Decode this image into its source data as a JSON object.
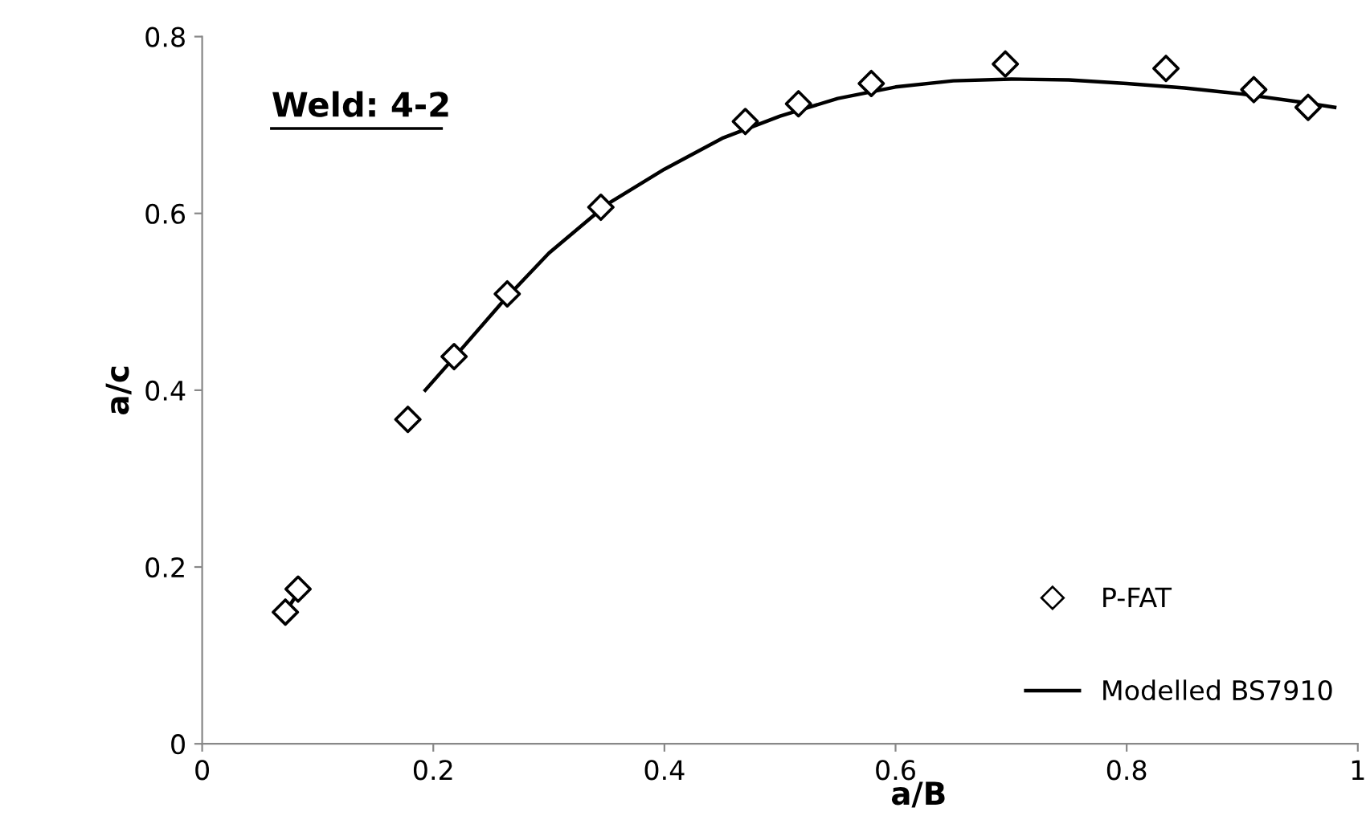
{
  "chart_data": {
    "type": "scatter",
    "xlabel": "a/B",
    "ylabel": "a/c",
    "annotations": [
      "Weld: 4-2"
    ],
    "series": [
      {
        "name": "P-FAT",
        "color": "#000000",
        "marker": "diamond",
        "x": [
          0.072,
          0.083,
          0.178,
          0.218,
          0.264,
          0.345,
          0.47,
          0.516,
          0.579,
          0.695,
          0.834,
          0.91,
          0.957
        ],
        "values": [
          0.149,
          0.175,
          0.367,
          0.438,
          0.509,
          0.607,
          0.704,
          0.724,
          0.747,
          0.769,
          0.764,
          0.74,
          0.72
        ]
      },
      {
        "name": "Modelled BS7910",
        "type": "line",
        "color": "#000000",
        "line_style": "solid",
        "x": [
          0.075,
          0.085,
          0.13,
          0.193,
          0.22,
          0.26,
          0.3,
          0.35,
          0.4,
          0.45,
          0.5,
          0.55,
          0.6,
          0.65,
          0.7,
          0.75,
          0.8,
          0.85,
          0.9,
          0.95,
          0.98
        ],
        "values": [
          0.155,
          0.175,
          null,
          0.4,
          0.44,
          0.5,
          0.555,
          0.61,
          0.65,
          0.685,
          0.71,
          0.73,
          0.743,
          0.75,
          0.752,
          0.751,
          0.747,
          0.742,
          0.735,
          0.726,
          0.72
        ]
      }
    ],
    "xlim": [
      0,
      1
    ],
    "xticks": [
      0,
      0.2,
      0.4,
      0.6,
      0.8,
      1
    ],
    "ylim": [
      0,
      0.8
    ],
    "yticks": [
      0,
      0.2,
      0.4,
      0.6,
      0.8
    ],
    "legend": "bottom right"
  }
}
